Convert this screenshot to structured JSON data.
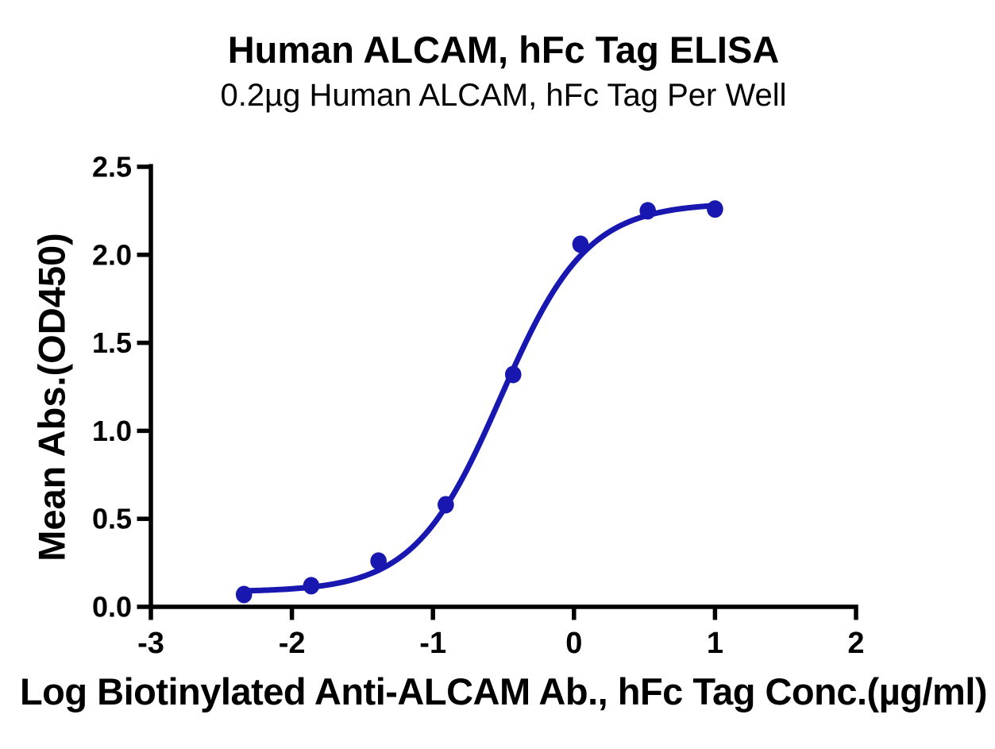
{
  "title": "Human ALCAM, hFc Tag ELISA",
  "subtitle": "0.2µg Human ALCAM, hFc Tag Per Well",
  "chart_data": {
    "type": "scatter",
    "title": "Human ALCAM, hFc Tag ELISA",
    "subtitle": "0.2µg Human ALCAM, hFc Tag Per Well",
    "xlabel": "Log Biotinylated Anti-ALCAM Ab., hFc Tag Conc.(µg/ml)",
    "ylabel": "Mean Abs.(OD450)",
    "xlim": [
      -3,
      2
    ],
    "ylim": [
      0,
      2.5
    ],
    "x_tick_values": [
      -3,
      -2,
      -1,
      0,
      1,
      2
    ],
    "x_tick_labels": [
      "-3",
      "-2",
      "-1",
      "0",
      "1",
      "2"
    ],
    "y_tick_values": [
      0,
      0.5,
      1.0,
      1.5,
      2.0,
      2.5
    ],
    "y_tick_labels": [
      "0.0",
      "0.5",
      "1.0",
      "1.5",
      "2.0",
      "2.5"
    ],
    "grid": false,
    "legend": "none",
    "series_color": "#1818b0",
    "points": {
      "x": [
        -2.34,
        -1.863,
        -1.386,
        -0.909,
        -0.431,
        0.046,
        0.523,
        1.0
      ],
      "y": [
        0.07,
        0.12,
        0.26,
        0.58,
        1.32,
        2.06,
        2.25,
        2.26
      ]
    },
    "fit_curve": {
      "model": "4PL",
      "bottom": 0.085,
      "top": 2.295,
      "logEC50": -0.52,
      "hill": 1.42,
      "x_range": [
        -2.34,
        1.0
      ]
    }
  }
}
